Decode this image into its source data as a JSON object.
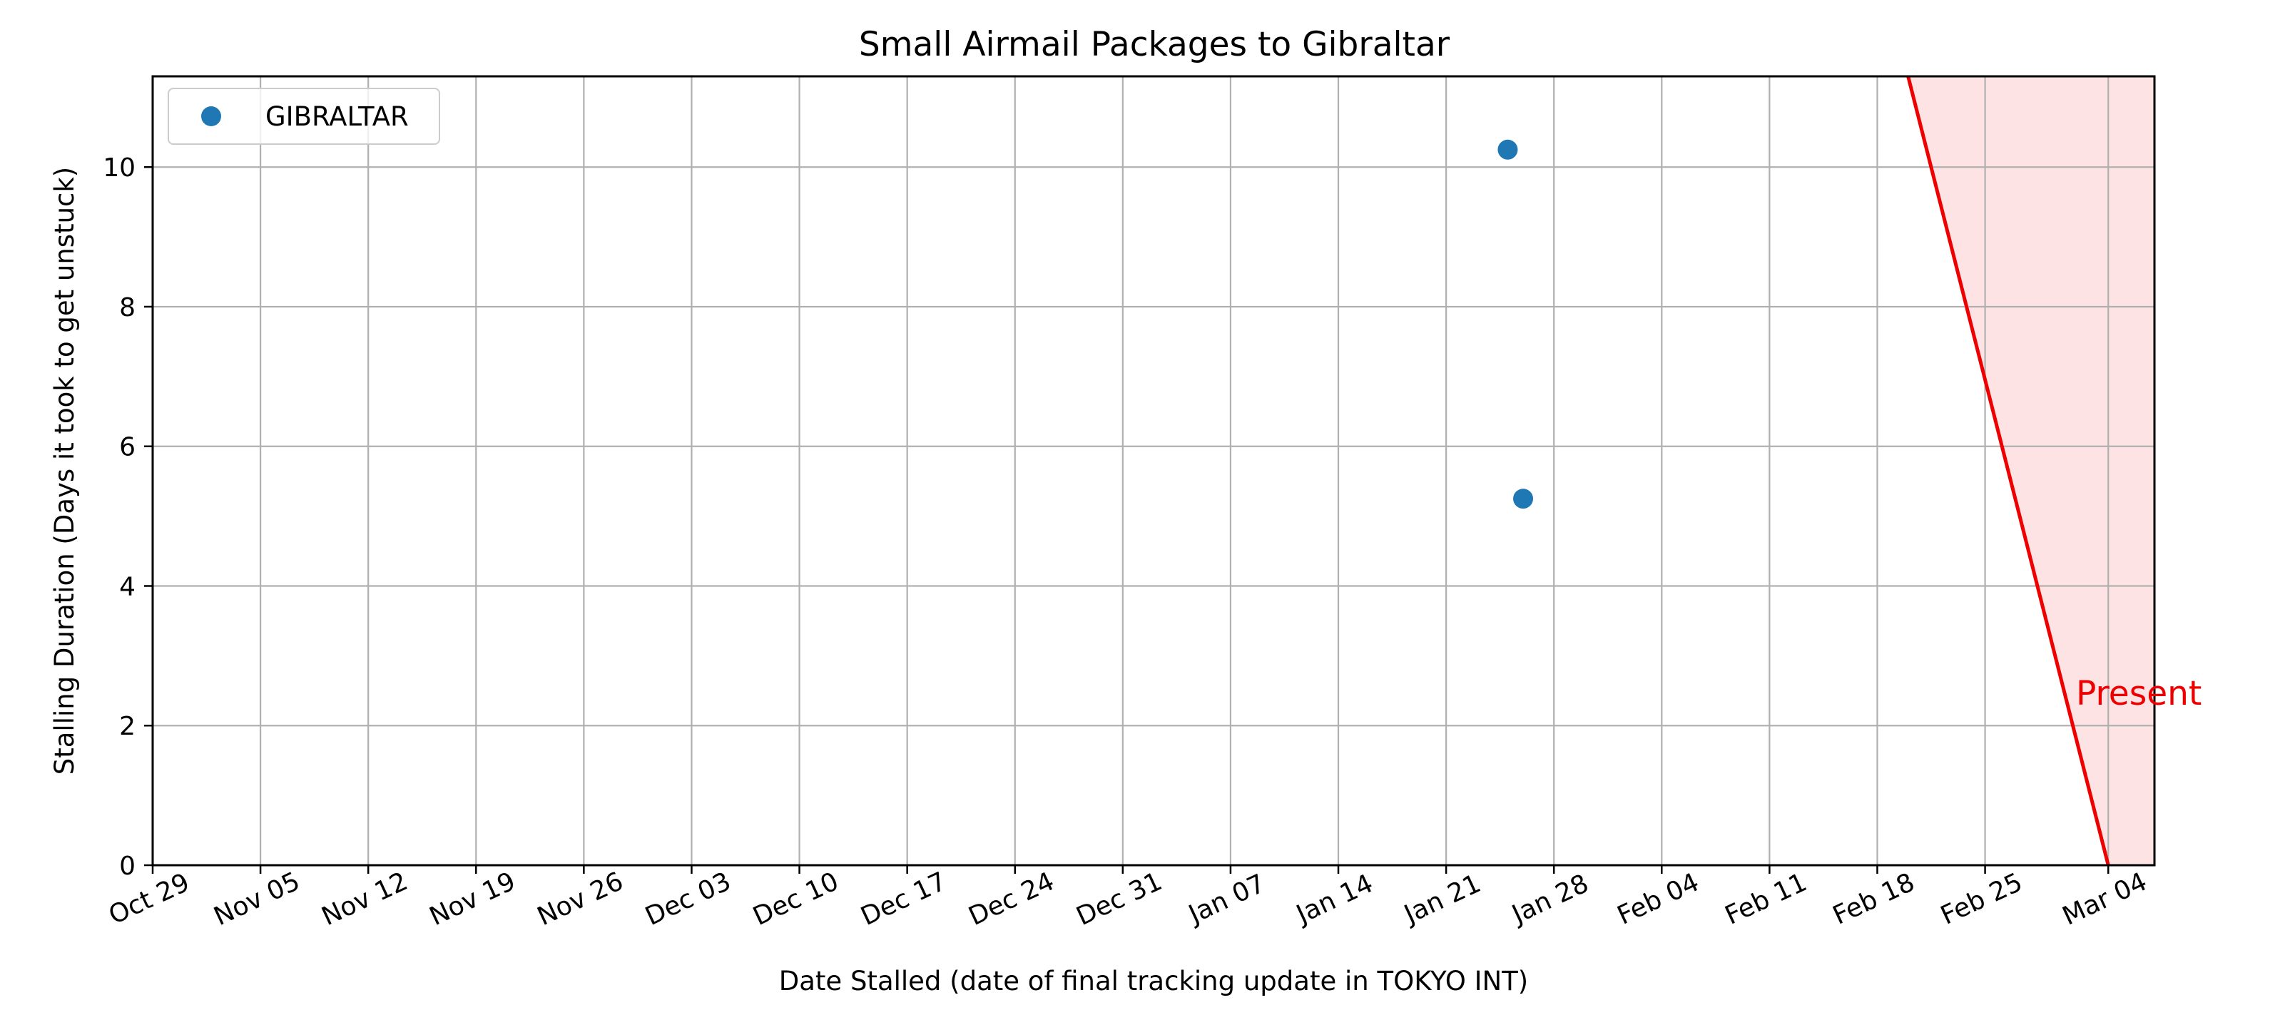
{
  "chart_data": {
    "type": "scatter",
    "title": "Small Airmail Packages to Gibraltar",
    "xlabel": "Date Stalled (date of final tracking update in TOKYO INT)",
    "ylabel": "Stalling Duration (Days it took to get unstuck)",
    "x_type": "date",
    "xlim": [
      "2023-10-29",
      "2024-03-07"
    ],
    "ylim": [
      0,
      11.3
    ],
    "x_ticks": [
      "2023-10-29",
      "2023-11-05",
      "2023-11-12",
      "2023-11-19",
      "2023-11-26",
      "2023-12-03",
      "2023-12-10",
      "2023-12-17",
      "2023-12-24",
      "2023-12-31",
      "2024-01-07",
      "2024-01-14",
      "2024-01-21",
      "2024-01-28",
      "2024-02-04",
      "2024-02-11",
      "2024-02-18",
      "2024-02-25",
      "2024-03-04"
    ],
    "x_tick_labels": [
      "Oct 29",
      "Nov 05",
      "Nov 12",
      "Nov 19",
      "Nov 26",
      "Dec 03",
      "Dec 10",
      "Dec 17",
      "Dec 24",
      "Dec 31",
      "Jan 07",
      "Jan 14",
      "Jan 21",
      "Jan 28",
      "Feb 04",
      "Feb 11",
      "Feb 18",
      "Feb 25",
      "Mar 04"
    ],
    "y_ticks": [
      0,
      2,
      4,
      6,
      8,
      10
    ],
    "y_tick_labels": [
      "0",
      "2",
      "4",
      "6",
      "8",
      "10"
    ],
    "grid": true,
    "legend_position": "top-left",
    "series": [
      {
        "name": "GIBRALTAR",
        "color": "#1f77b4",
        "points": [
          {
            "x": "2024-01-25",
            "y": 10.25
          },
          {
            "x": "2024-01-26",
            "y": 5.25
          }
        ]
      }
    ],
    "present_marker": {
      "label": "Present",
      "color": "#ee0000",
      "shade_color": "#fde3e3",
      "line_top": {
        "x": "2024-02-20",
        "y": 11.3
      },
      "line_bottom": {
        "x": "2024-03-04",
        "y": 0
      }
    }
  }
}
